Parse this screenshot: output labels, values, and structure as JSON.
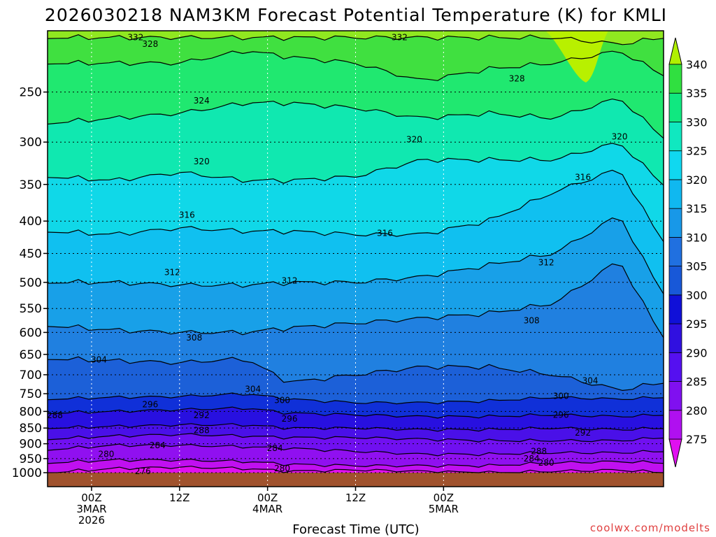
{
  "title": "2026030218 NAM3KM Forecast Potential Temperature (K) for KMLI",
  "credit": "coolwx.com/modelts",
  "colors": {
    "ground": "#a0522d",
    "grid": "#000000",
    "contour": "#000000"
  },
  "chart_data": {
    "type": "heatmap",
    "title": "2026030218 NAM3KM Forecast Potential Temperature (K) for KMLI",
    "xlabel": "Forecast Time (UTC)",
    "ylabel": "",
    "x_range_hours": [
      -6,
      78
    ],
    "y_scale": "log",
    "ylim": [
      1000,
      200
    ],
    "y_ticks": [
      250,
      300,
      350,
      400,
      450,
      500,
      550,
      600,
      650,
      700,
      750,
      800,
      850,
      900,
      950,
      1000
    ],
    "x_ticks": [
      {
        "hour": 0,
        "lines": [
          "00Z",
          "3MAR",
          "2026"
        ]
      },
      {
        "hour": 12,
        "lines": [
          "12Z"
        ]
      },
      {
        "hour": 24,
        "lines": [
          "00Z",
          "4MAR"
        ]
      },
      {
        "hour": 36,
        "lines": [
          "12Z"
        ]
      },
      {
        "hour": 48,
        "lines": [
          "00Z",
          "5MAR"
        ]
      }
    ],
    "grid": true,
    "colorbar": {
      "position": "right",
      "levels": [
        275,
        280,
        285,
        290,
        295,
        300,
        305,
        310,
        315,
        320,
        325,
        330,
        335,
        340
      ],
      "colors": [
        "#e010f0",
        "#b010f0",
        "#8010f0",
        "#5510f0",
        "#3010e0",
        "#1010d8",
        "#1858d8",
        "#2070e0",
        "#1898e8",
        "#10b8f0",
        "#10d8f0",
        "#10e8c0",
        "#10e880",
        "#30e040",
        "#80e010",
        "#b0f000"
      ]
    },
    "contour_levels": [
      276,
      280,
      284,
      288,
      292,
      296,
      300,
      304,
      308,
      312,
      316,
      320,
      324,
      328,
      332
    ],
    "contour_profiles": [
      {
        "theta": 276,
        "pressure": [
          1000,
          985,
          980,
          985,
          995,
          990,
          995,
          1000,
          995,
          990,
          1000
        ]
      },
      {
        "theta": 280,
        "pressure": [
          965,
          955,
          955,
          960,
          970,
          975,
          975,
          975,
          965,
          960,
          965
        ]
      },
      {
        "theta": 284,
        "pressure": [
          920,
          905,
          905,
          910,
          915,
          925,
          935,
          935,
          930,
          930,
          925
        ]
      },
      {
        "theta": 288,
        "pressure": [
          885,
          875,
          870,
          875,
          880,
          880,
          885,
          890,
          890,
          890,
          880
        ]
      },
      {
        "theta": 292,
        "pressure": [
          850,
          845,
          840,
          840,
          850,
          850,
          855,
          855,
          850,
          855,
          850
        ]
      },
      {
        "theta": 296,
        "pressure": [
          805,
          800,
          795,
          790,
          805,
          810,
          815,
          815,
          810,
          815,
          810
        ]
      },
      {
        "theta": 300,
        "pressure": [
          765,
          760,
          758,
          750,
          765,
          775,
          775,
          770,
          760,
          765,
          760
        ]
      },
      {
        "theta": 304,
        "pressure": [
          660,
          665,
          670,
          660,
          720,
          700,
          680,
          680,
          700,
          740,
          720
        ]
      },
      {
        "theta": 308,
        "pressure": [
          585,
          595,
          600,
          600,
          590,
          580,
          570,
          560,
          540,
          460,
          610
        ]
      },
      {
        "theta": 312,
        "pressure": [
          500,
          500,
          505,
          505,
          500,
          500,
          490,
          470,
          450,
          390,
          520
        ]
      },
      {
        "theta": 316,
        "pressure": [
          415,
          420,
          410,
          415,
          415,
          420,
          420,
          400,
          360,
          330,
          430
        ]
      },
      {
        "theta": 320,
        "pressure": [
          340,
          345,
          335,
          345,
          345,
          340,
          320,
          320,
          320,
          300,
          350
        ]
      },
      {
        "theta": 324,
        "pressure": [
          280,
          275,
          270,
          260,
          260,
          265,
          275,
          270,
          275,
          255,
          295
        ]
      },
      {
        "theta": 328,
        "pressure": [
          225,
          225,
          225,
          215,
          220,
          225,
          240,
          230,
          225,
          215,
          235
        ]
      },
      {
        "theta": 332,
        "pressure": [
          205,
          205,
          205,
          205,
          205,
          205,
          205,
          205,
          205,
          210,
          205
        ]
      }
    ],
    "contour_profile_hours": [
      -6,
      3,
      12,
      21,
      27,
      36,
      45,
      54,
      63,
      72,
      78
    ],
    "contour_labels": [
      {
        "text": "276",
        "hour": 7,
        "pressure": 995
      },
      {
        "text": "280",
        "hour": 2,
        "pressure": 935
      },
      {
        "text": "280",
        "hour": 26,
        "pressure": 985
      },
      {
        "text": "280",
        "hour": 62,
        "pressure": 965
      },
      {
        "text": "284",
        "hour": 9,
        "pressure": 905
      },
      {
        "text": "284",
        "hour": 25,
        "pressure": 915
      },
      {
        "text": "284",
        "hour": 60,
        "pressure": 950
      },
      {
        "text": "288",
        "hour": -5,
        "pressure": 812
      },
      {
        "text": "288",
        "hour": 15,
        "pressure": 857
      },
      {
        "text": "288",
        "hour": 61,
        "pressure": 925
      },
      {
        "text": "292",
        "hour": 15,
        "pressure": 812
      },
      {
        "text": "292",
        "hour": 67,
        "pressure": 865
      },
      {
        "text": "296",
        "hour": 8,
        "pressure": 780
      },
      {
        "text": "296",
        "hour": 27,
        "pressure": 822
      },
      {
        "text": "296",
        "hour": 64,
        "pressure": 810
      },
      {
        "text": "300",
        "hour": 26,
        "pressure": 768
      },
      {
        "text": "300",
        "hour": 64,
        "pressure": 757
      },
      {
        "text": "304",
        "hour": 1,
        "pressure": 663
      },
      {
        "text": "304",
        "hour": 22,
        "pressure": 738
      },
      {
        "text": "304",
        "hour": 68,
        "pressure": 715
      },
      {
        "text": "308",
        "hour": 14,
        "pressure": 612
      },
      {
        "text": "308",
        "hour": 60,
        "pressure": 575
      },
      {
        "text": "312",
        "hour": 11,
        "pressure": 482
      },
      {
        "text": "312",
        "hour": 27,
        "pressure": 497
      },
      {
        "text": "312",
        "hour": 62,
        "pressure": 465
      },
      {
        "text": "316",
        "hour": 13,
        "pressure": 391
      },
      {
        "text": "316",
        "hour": 40,
        "pressure": 418
      },
      {
        "text": "316",
        "hour": 67,
        "pressure": 341
      },
      {
        "text": "320",
        "hour": 15,
        "pressure": 322
      },
      {
        "text": "320",
        "hour": 44,
        "pressure": 297
      },
      {
        "text": "320",
        "hour": 72,
        "pressure": 294
      },
      {
        "text": "324",
        "hour": 15,
        "pressure": 258
      },
      {
        "text": "328",
        "hour": 8,
        "pressure": 210
      },
      {
        "text": "328",
        "hour": 58,
        "pressure": 238
      },
      {
        "text": "332",
        "hour": 6,
        "pressure": 205
      },
      {
        "text": "332",
        "hour": 42,
        "pressure": 205
      }
    ]
  }
}
